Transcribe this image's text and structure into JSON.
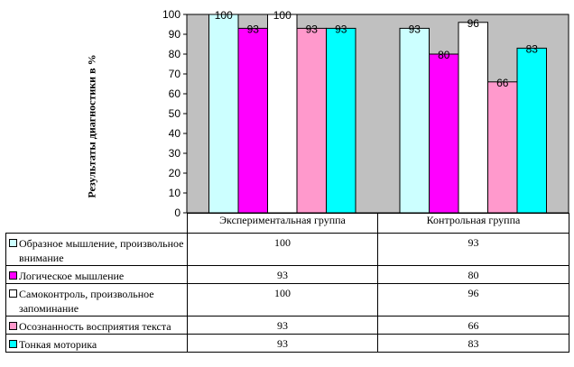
{
  "chart_data": {
    "type": "bar",
    "ylabel": "Результаты диагностики в %",
    "ylim": [
      0,
      100
    ],
    "yticks": [
      0,
      10,
      20,
      30,
      40,
      50,
      60,
      70,
      80,
      90,
      100
    ],
    "grid": false,
    "plot_background": "#c0c0c0",
    "categories": [
      "Экспериментальная группа",
      "Контрольная группа"
    ],
    "series": [
      {
        "name": "Образное мышление, произвольное внимание",
        "color": "#ccffff",
        "values": [
          100,
          93
        ]
      },
      {
        "name": "Логическое мышление",
        "color": "#ff00ff",
        "values": [
          93,
          80
        ]
      },
      {
        "name": "Самоконтроль, произвольное запоминание",
        "color": "#ffffff",
        "values": [
          100,
          96
        ]
      },
      {
        "name": "Осознанность восприятия текста",
        "color": "#ff99cc",
        "values": [
          93,
          66
        ]
      },
      {
        "name": "Тонкая моторика",
        "color": "#00ffff",
        "values": [
          93,
          83
        ]
      }
    ]
  }
}
